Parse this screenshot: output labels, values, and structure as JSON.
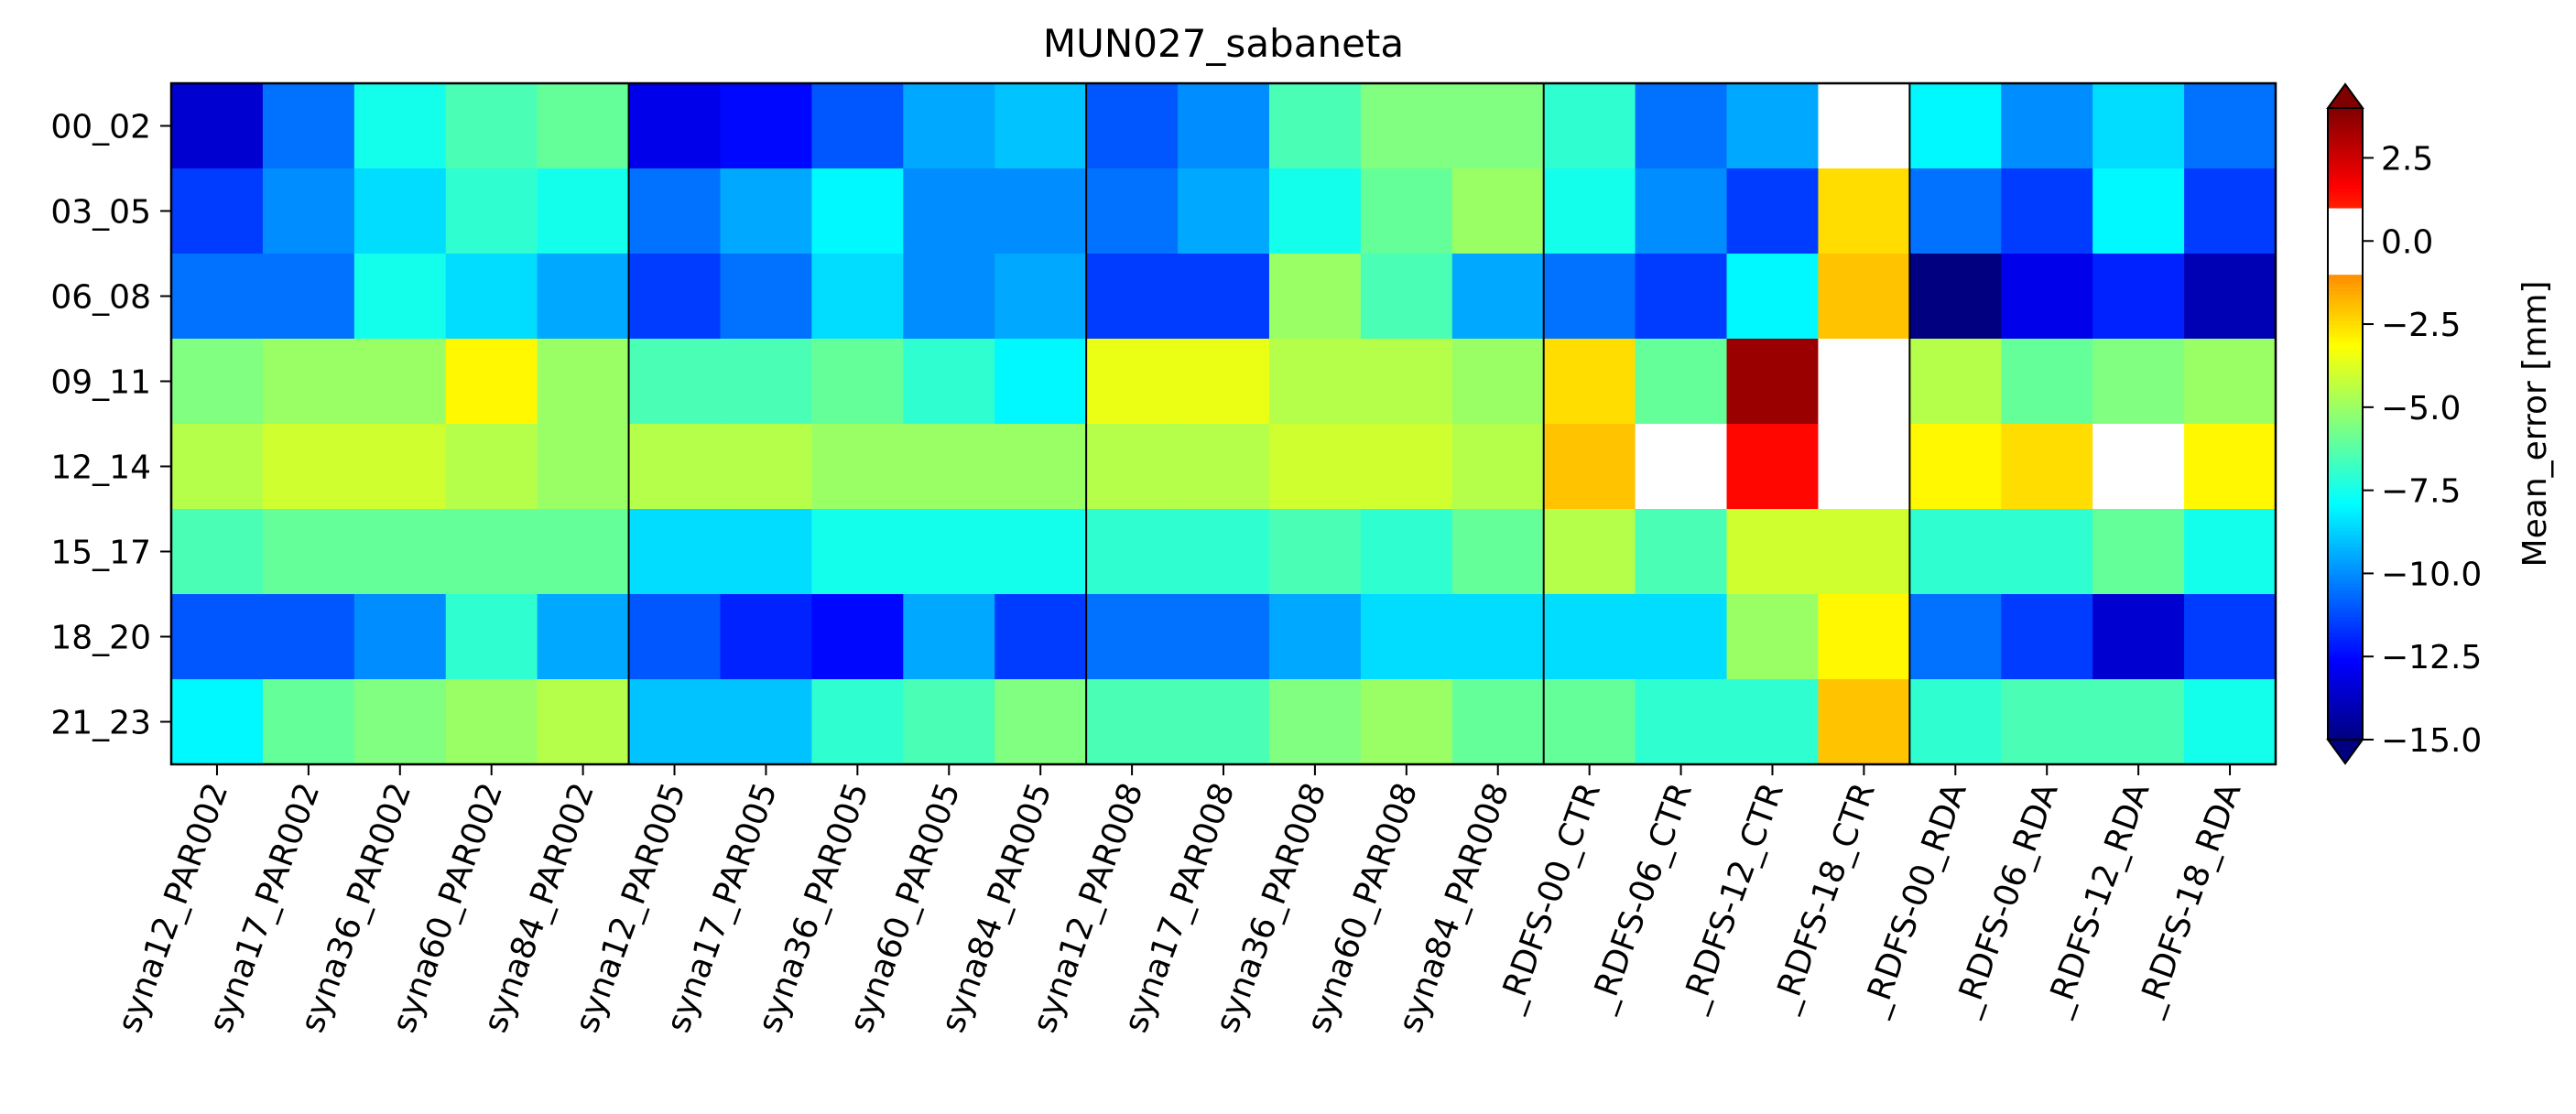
{
  "chart_data": {
    "type": "heatmap",
    "title": "MUN027_sabaneta",
    "rows": [
      "00_02",
      "03_05",
      "06_08",
      "09_11",
      "12_14",
      "15_17",
      "18_20",
      "21_23"
    ],
    "columns": [
      "syna12_PAR002",
      "syna17_PAR002",
      "syna36_PAR002",
      "syna60_PAR002",
      "syna84_PAR002",
      "syna12_PAR005",
      "syna17_PAR005",
      "syna36_PAR005",
      "syna60_PAR005",
      "syna84_PAR005",
      "syna12_PAR008",
      "syna17_PAR008",
      "syna36_PAR008",
      "syna60_PAR008",
      "syna84_PAR008",
      "_RDFS-00_CTR",
      "_RDFS-06_CTR",
      "_RDFS-12_CTR",
      "_RDFS-18_CTR",
      "_RDFS-00_RDA",
      "_RDFS-06_RDA",
      "_RDFS-12_RDA",
      "_RDFS-18_RDA"
    ],
    "group_separators_after": [
      4,
      9,
      14,
      18
    ],
    "values": [
      [
        -13.5,
        -10.5,
        -7.5,
        -6.5,
        -6.0,
        -13.0,
        -12.5,
        -11.0,
        -9.5,
        -9.0,
        -11.0,
        -10.0,
        -6.5,
        -5.5,
        -5.5,
        -7.0,
        -10.5,
        -9.5,
        0.0,
        -8.0,
        -10.0,
        -8.5,
        -10.5
      ],
      [
        -11.5,
        -10.0,
        -8.5,
        -7.0,
        -7.5,
        -10.5,
        -9.5,
        -8.0,
        -10.0,
        -10.0,
        -10.5,
        -9.5,
        -7.5,
        -6.0,
        -5.0,
        -7.5,
        -10.0,
        -11.5,
        -2.5,
        -10.5,
        -11.5,
        -8.0,
        -11.5
      ],
      [
        -10.5,
        -10.5,
        -7.5,
        -8.5,
        -9.5,
        -11.5,
        -10.5,
        -8.5,
        -10.0,
        -9.5,
        -11.5,
        -11.5,
        -5.0,
        -6.5,
        -9.5,
        -10.5,
        -11.5,
        -8.0,
        -2.0,
        -15.0,
        -13.0,
        -12.0,
        -14.0
      ],
      [
        -5.5,
        -5.0,
        -5.0,
        -3.0,
        -5.0,
        -6.5,
        -6.5,
        -6.0,
        -7.0,
        -8.0,
        -3.5,
        -3.5,
        -4.5,
        -4.5,
        -5.0,
        -2.5,
        -6.0,
        3.5,
        0.0,
        -4.5,
        -6.0,
        -5.5,
        -5.0
      ],
      [
        -4.5,
        -4.0,
        -4.0,
        -4.5,
        -5.0,
        -4.5,
        -4.5,
        -5.0,
        -5.0,
        -5.0,
        -4.5,
        -4.5,
        -4.0,
        -4.0,
        -4.5,
        -2.0,
        0.0,
        1.5,
        0.0,
        -3.0,
        -2.5,
        0.0,
        -3.0
      ],
      [
        -6.5,
        -6.0,
        -6.0,
        -6.0,
        -6.0,
        -8.5,
        -8.5,
        -7.5,
        -7.5,
        -7.5,
        -7.0,
        -7.0,
        -6.5,
        -7.0,
        -6.0,
        -4.5,
        -6.5,
        -4.0,
        -4.0,
        -7.0,
        -7.0,
        -6.0,
        -7.5
      ],
      [
        -11.0,
        -11.0,
        -10.0,
        -7.0,
        -9.5,
        -11.0,
        -12.0,
        -12.5,
        -9.5,
        -11.5,
        -10.5,
        -10.5,
        -9.5,
        -8.5,
        -8.5,
        -8.5,
        -8.5,
        -5.0,
        -3.0,
        -10.5,
        -11.5,
        -13.5,
        -11.5
      ],
      [
        -8.0,
        -6.0,
        -5.5,
        -5.0,
        -4.5,
        -9.0,
        -9.0,
        -7.0,
        -6.5,
        -5.5,
        -6.5,
        -6.5,
        -5.5,
        -5.0,
        -6.0,
        -6.0,
        -7.0,
        -7.0,
        -2.0,
        -7.0,
        -6.5,
        -6.5,
        -7.5
      ]
    ],
    "colorbar": {
      "label": "Mean_error [mm]",
      "range": [
        -15.0,
        4.0
      ],
      "ticks": [
        2.5,
        0.0,
        -2.5,
        -5.0,
        -7.5,
        -10.0,
        -12.5,
        -15.0
      ],
      "tick_labels": [
        "2.5",
        "0.0",
        "−2.5",
        "−5.0",
        "−7.5",
        "−10.0",
        "−12.5",
        "−15.0"
      ],
      "white_band": [
        -1.0,
        1.0
      ],
      "extend": "both",
      "colormap": "jet"
    }
  }
}
